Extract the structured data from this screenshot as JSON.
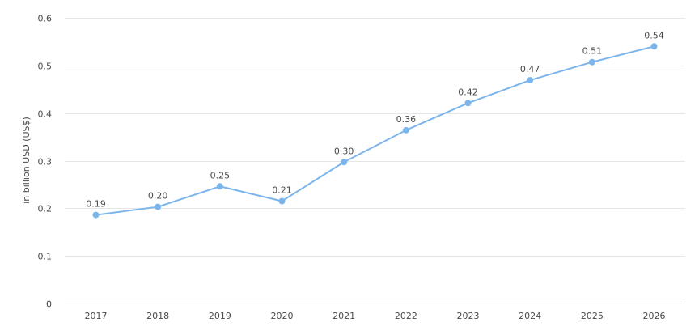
{
  "chart_data": {
    "type": "line",
    "categories": [
      "2017",
      "2018",
      "2019",
      "2020",
      "2021",
      "2022",
      "2023",
      "2024",
      "2025",
      "2026"
    ],
    "series": [
      {
        "values": [
          0.186,
          0.203,
          0.246,
          0.215,
          0.297,
          0.364,
          0.421,
          0.469,
          0.507,
          0.54
        ]
      }
    ],
    "data_labels": [
      "0.19",
      "0.20",
      "0.25",
      "0.21",
      "0.30",
      "0.36",
      "0.42",
      "0.47",
      "0.51",
      "0.54"
    ],
    "y_ticks": [
      "0",
      "0.1",
      "0.2",
      "0.3",
      "0.4",
      "0.5",
      "0.6"
    ],
    "ylabel": "in billion USD (US$)",
    "ylim": [
      0,
      0.6
    ],
    "grid": true,
    "colors": {
      "line": "#7cb5ec",
      "grid": "#e6e6e6"
    }
  }
}
